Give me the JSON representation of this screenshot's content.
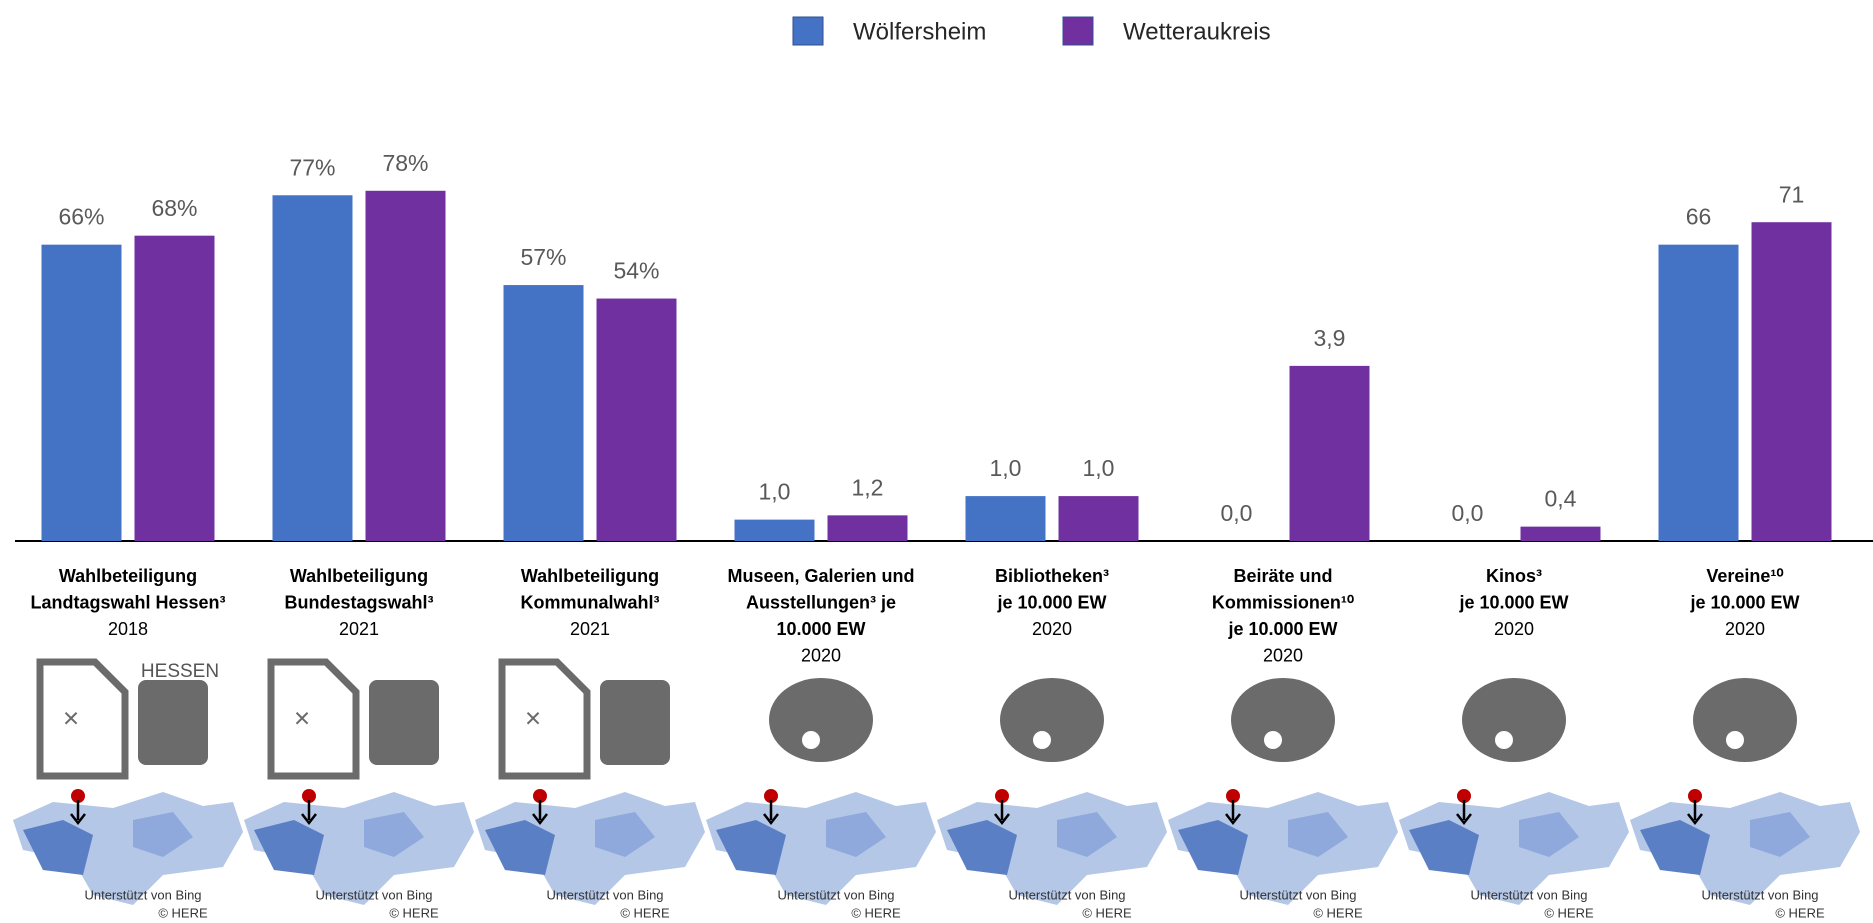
{
  "chart_data": {
    "type": "bar",
    "series": [
      {
        "name": "Wölfersheim",
        "color": "#4472c4",
        "values": [
          66,
          77,
          57,
          1.0,
          1.0,
          0.0,
          0.0,
          66
        ],
        "value_labels": [
          "66%",
          "77%",
          "57%",
          "1,0",
          "1,0",
          "0,0",
          "0,0",
          "66"
        ]
      },
      {
        "name": "Wetteraukreis",
        "color": "#7030a0",
        "values": [
          68,
          78,
          54,
          1.2,
          1.0,
          3.9,
          0.4,
          71
        ],
        "value_labels": [
          "68%",
          "78%",
          "54%",
          "1,2",
          "1,0",
          "3,9",
          "0,4",
          "71"
        ]
      }
    ],
    "categories": [
      [
        "Wahlbeteiligung",
        "Landtagswahl Hessen³"
      ],
      [
        "Wahlbeteiligung",
        "Bundestagswahl³"
      ],
      [
        "Wahlbeteiligung",
        "Kommunalwahl³"
      ],
      [
        "Museen, Galerien und",
        "Ausstellungen³ je",
        "10.000 EW"
      ],
      [
        "Bibliotheken³",
        "je 10.000 EW"
      ],
      [
        "Beiräte und",
        "Kommissionen¹⁰",
        "je 10.000 EW"
      ],
      [
        "Kinos³",
        "je 10.000 EW"
      ],
      [
        "Vereine¹⁰",
        "je 10.000 EW"
      ]
    ],
    "years": [
      "2018",
      "2021",
      "2021",
      "2020",
      "2020",
      "2020",
      "2020",
      "2020"
    ],
    "ylims": [
      [
        0,
        100
      ],
      [
        0,
        100
      ],
      [
        0,
        100
      ],
      [
        0,
        21
      ],
      [
        0,
        10
      ],
      [
        0,
        10
      ],
      [
        0,
        12.5
      ],
      [
        0,
        100
      ]
    ],
    "legend_position": "top",
    "icon_text": "HESSEN",
    "map_credits": [
      "Unterstützt von Bing",
      "© HERE"
    ]
  }
}
